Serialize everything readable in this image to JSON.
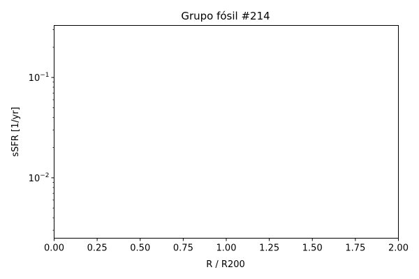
{
  "chart_data": {
    "type": "scatter",
    "title": "Grupo fósil #214",
    "xlabel": "R / R200",
    "ylabel": "sSFR [1/yr]",
    "xlim": [
      0.0,
      2.0
    ],
    "ylim": [
      0.0025,
      0.33
    ],
    "yscale": "log",
    "grid": false,
    "x_ticks": [
      0.0,
      0.25,
      0.5,
      0.75,
      1.0,
      1.25,
      1.5,
      1.75,
      2.0
    ],
    "x_tick_labels": [
      "0.00",
      "0.25",
      "0.50",
      "0.75",
      "1.00",
      "1.25",
      "1.50",
      "1.75",
      "2.00"
    ],
    "y_major_ticks": [
      0.01,
      0.1
    ],
    "y_tick_labels": [
      {
        "base": "10",
        "exp": "−2"
      },
      {
        "base": "10",
        "exp": "−1"
      }
    ],
    "series": []
  }
}
